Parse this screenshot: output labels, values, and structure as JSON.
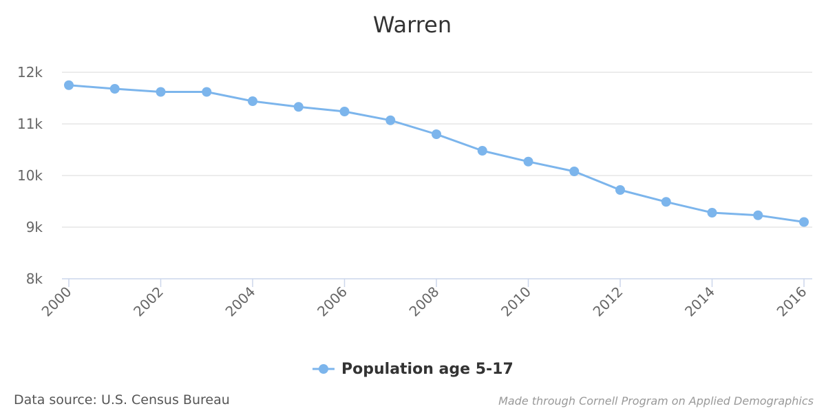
{
  "chart_data": {
    "type": "line",
    "title": "Warren",
    "xlabel": "",
    "ylabel": "",
    "x": [
      2000,
      2001,
      2002,
      2003,
      2004,
      2005,
      2006,
      2007,
      2008,
      2009,
      2010,
      2011,
      2012,
      2013,
      2014,
      2015,
      2016
    ],
    "x_ticks": [
      "2000",
      "2002",
      "2004",
      "2006",
      "2008",
      "2010",
      "2012",
      "2014",
      "2016"
    ],
    "y_ticks": [
      "8k",
      "9k",
      "10k",
      "11k",
      "12k"
    ],
    "ylim": [
      8000,
      12000
    ],
    "grid": true,
    "legend_position": "bottom-center",
    "series": [
      {
        "name": "Population age 5-17",
        "color": "#7cb5ec",
        "values": [
          11750,
          11680,
          11620,
          11620,
          11440,
          11330,
          11240,
          11070,
          10800,
          10480,
          10270,
          10080,
          9720,
          9490,
          9280,
          9230,
          9100
        ]
      }
    ]
  },
  "footer": {
    "source": "Data source: U.S. Census Bureau",
    "credit": "Made through Cornell Program on Applied Demographics"
  }
}
